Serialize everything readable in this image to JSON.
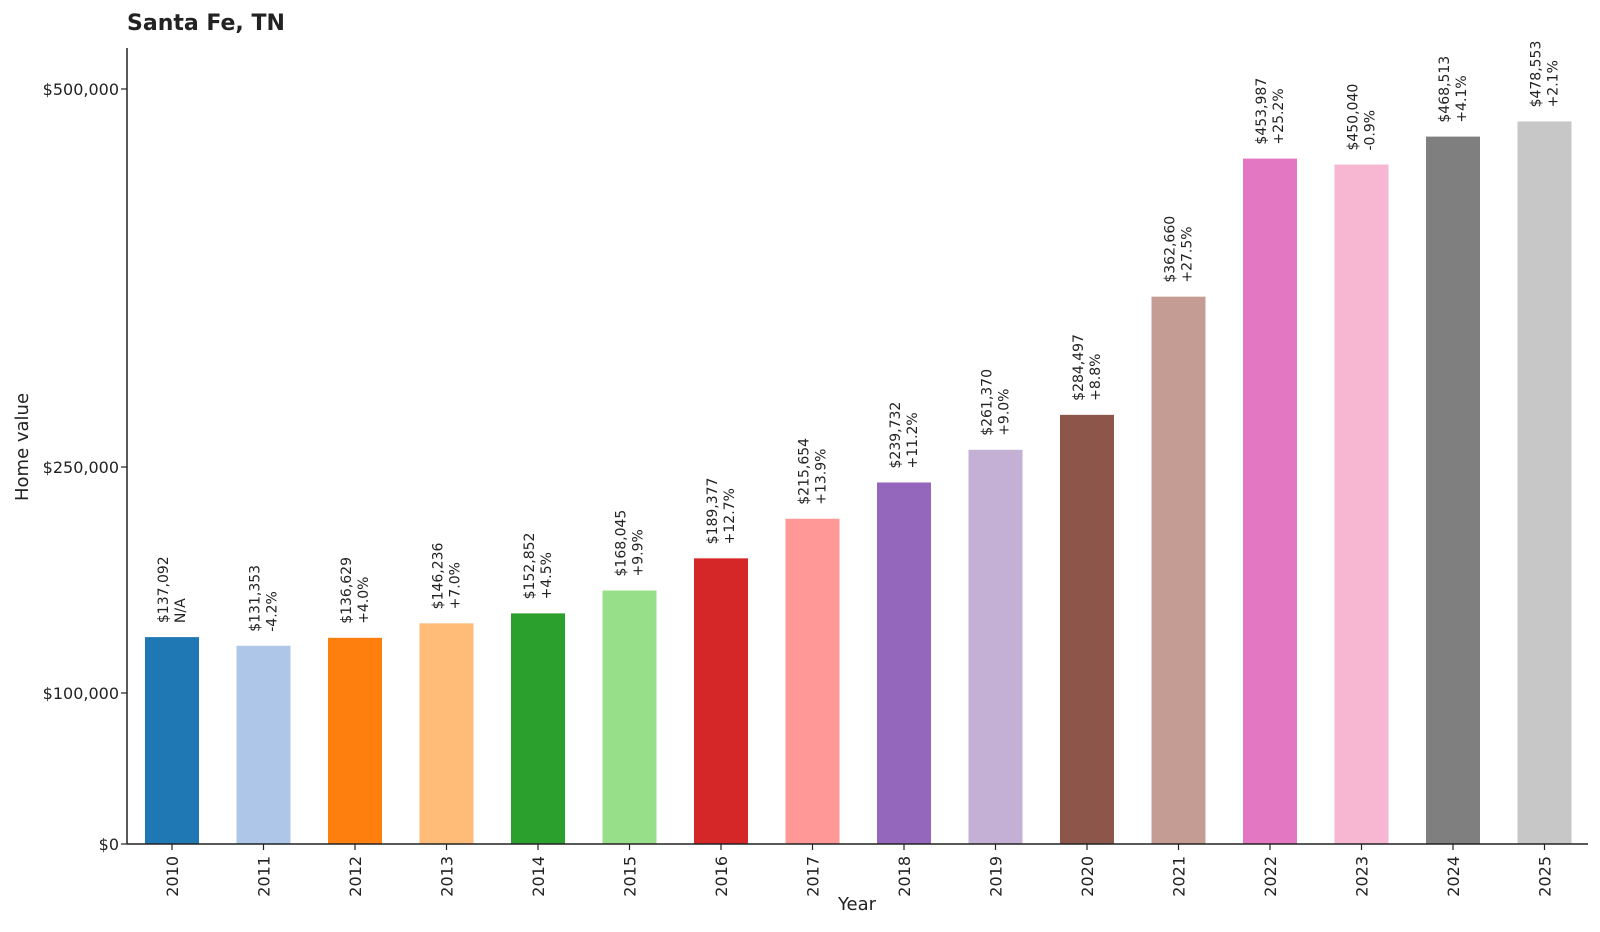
{
  "chart_data": {
    "type": "bar",
    "title": "Santa Fe, TN",
    "xlabel": "Year",
    "ylabel": "Home value",
    "ylim": [
      0,
      527000
    ],
    "yscale": "custom-broken (labeled ticks at $0, $100,000, $250,000, $500,000)",
    "grid": false,
    "legend": "none",
    "y_ticks": [
      {
        "value": 0,
        "label": "$0"
      },
      {
        "value": 100000,
        "label": "$100,000"
      },
      {
        "value": 250000,
        "label": "$250,000"
      },
      {
        "value": 500000,
        "label": "$500,000"
      }
    ],
    "categories": [
      "2010",
      "2011",
      "2012",
      "2013",
      "2014",
      "2015",
      "2016",
      "2017",
      "2018",
      "2019",
      "2020",
      "2021",
      "2022",
      "2023",
      "2024",
      "2025"
    ],
    "values": [
      137092,
      131353,
      136629,
      146236,
      152852,
      168045,
      189377,
      215654,
      239732,
      261370,
      284497,
      362660,
      453987,
      450040,
      468513,
      478553
    ],
    "value_labels": [
      "$137,092",
      "$131,353",
      "$136,629",
      "$146,236",
      "$152,852",
      "$168,045",
      "$189,377",
      "$215,654",
      "$239,732",
      "$261,370",
      "$284,497",
      "$362,660",
      "$453,987",
      "$450,040",
      "$468,513",
      "$478,553"
    ],
    "change_labels": [
      "N/A",
      "-4.2%",
      "+4.0%",
      "+7.0%",
      "+4.5%",
      "+9.9%",
      "+12.7%",
      "+13.9%",
      "+11.2%",
      "+9.0%",
      "+8.8%",
      "+27.5%",
      "+25.2%",
      "-0.9%",
      "+4.1%",
      "+2.1%"
    ],
    "colors": [
      "#1f77b4",
      "#aec7e8",
      "#ff7f0e",
      "#ffbb78",
      "#2ca02c",
      "#98df8a",
      "#d62728",
      "#ff9896",
      "#9467bd",
      "#c5b0d5",
      "#8c564b",
      "#c49c94",
      "#e377c2",
      "#f7b6d2",
      "#7f7f7f",
      "#c7c7c7"
    ]
  }
}
